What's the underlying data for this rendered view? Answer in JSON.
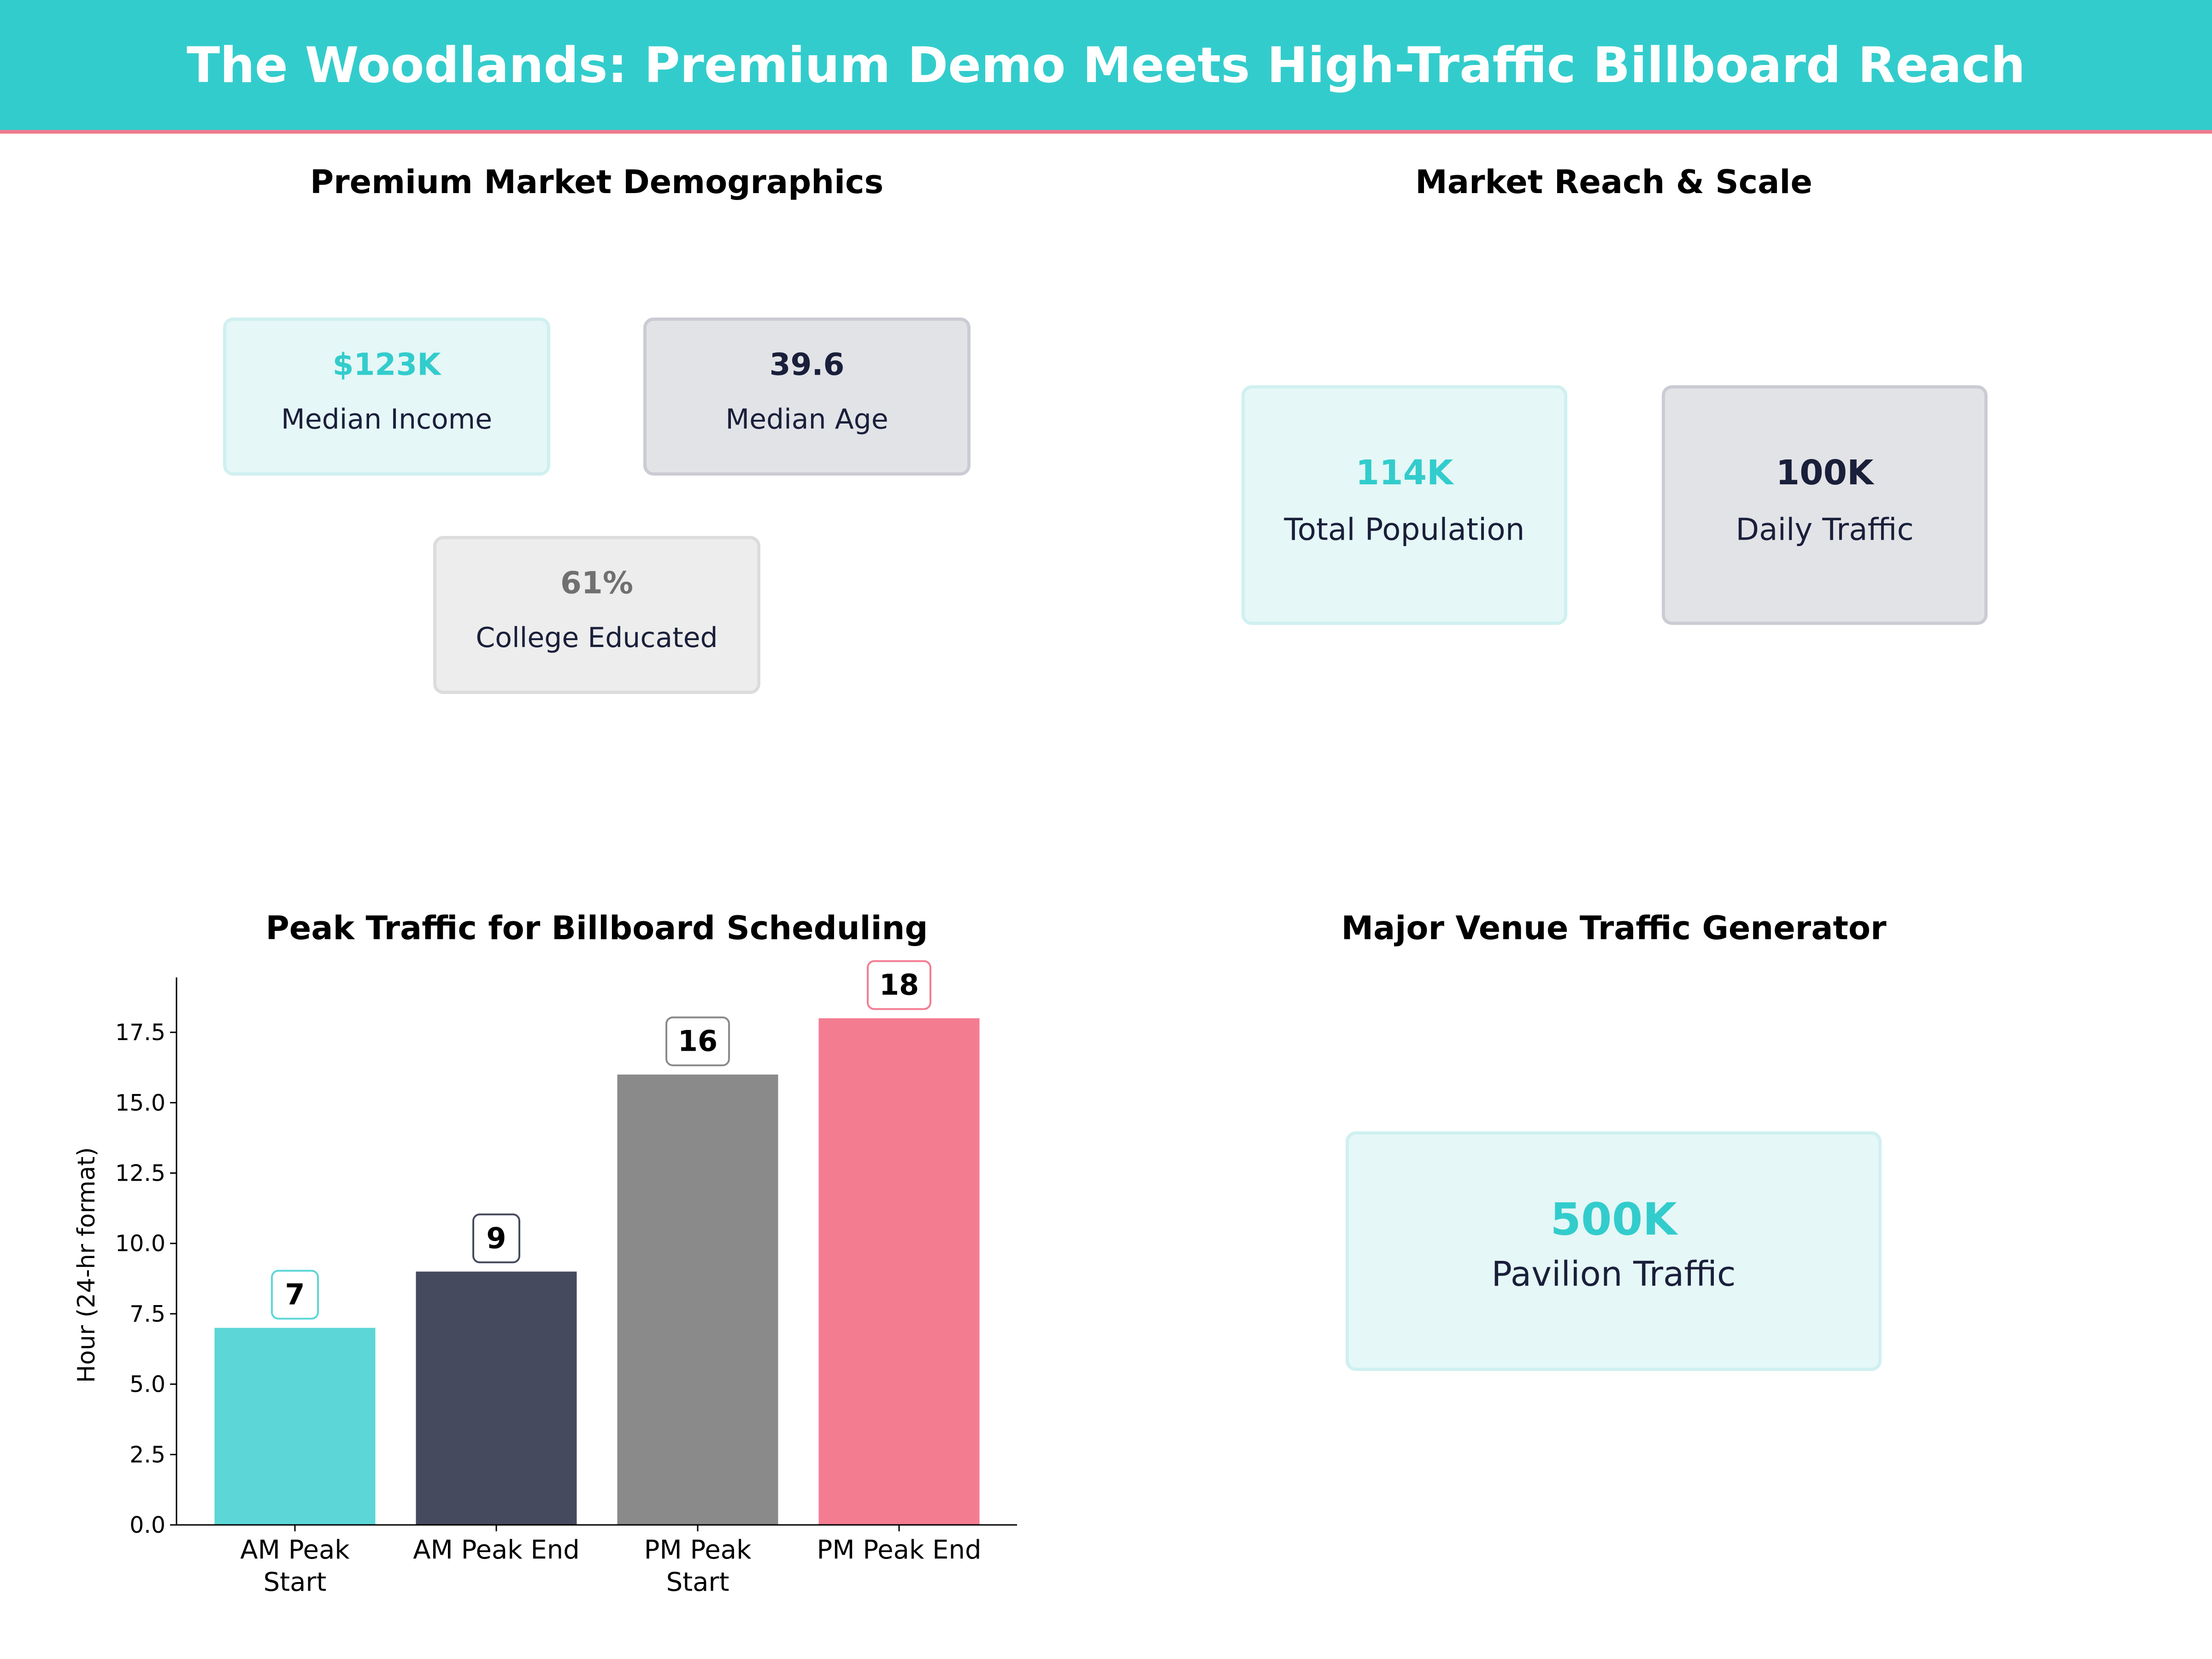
{
  "header": {
    "title": "The Woodlands: Premium Demo Meets High-Traffic Billboard Reach"
  },
  "colors": {
    "teal": "#33CCCC",
    "navy": "#1A1F3A",
    "gray": "#707070",
    "pink": "#F47C91"
  },
  "demographics": {
    "title": "Premium Market Demographics",
    "cards": [
      {
        "value": "$123K",
        "label": "Median Income"
      },
      {
        "value": "39.6",
        "label": "Median Age"
      },
      {
        "value": "61%",
        "label": "College Educated"
      }
    ]
  },
  "reach": {
    "title": "Market Reach & Scale",
    "cards": [
      {
        "value": "114K",
        "label": "Total Population"
      },
      {
        "value": "100K",
        "label": "Daily Traffic"
      }
    ]
  },
  "venue": {
    "title": "Major Venue Traffic Generator",
    "card": {
      "value": "500K",
      "label": "Pavilion Traffic"
    }
  },
  "chart_data": {
    "type": "bar",
    "title": "Peak Traffic for Billboard Scheduling",
    "xlabel": "",
    "ylabel": "Hour (24-hr format)",
    "categories": [
      [
        "AM Peak",
        "Start"
      ],
      [
        "AM Peak End"
      ],
      [
        "PM Peak",
        "Start"
      ],
      [
        "PM Peak End"
      ]
    ],
    "values": [
      7,
      9,
      16,
      18
    ],
    "data_labels": [
      "7",
      "9",
      "16",
      "18"
    ],
    "bar_colors": [
      "#5CD6D6",
      "#464A5E",
      "#8A8A8A",
      "#F47C91"
    ],
    "label_border_colors": [
      "#5CD6D6",
      "#464A5E",
      "#8A8A8A",
      "#F47C91"
    ],
    "ylim": [
      0,
      19.45
    ],
    "yticks": [
      "0.0",
      "2.5",
      "5.0",
      "7.5",
      "10.0",
      "12.5",
      "15.0",
      "17.5"
    ],
    "ytick_values": [
      0,
      2.5,
      5,
      7.5,
      10,
      12.5,
      15,
      17.5
    ],
    "grid": false
  }
}
